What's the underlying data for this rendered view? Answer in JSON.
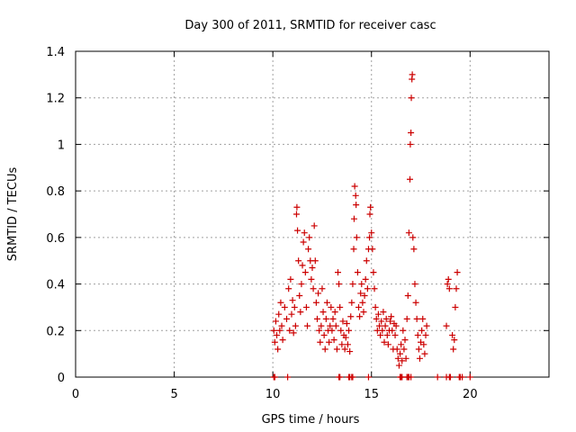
{
  "chart_data": {
    "type": "scatter",
    "title": "Day 300 of 2011, SRMTID for receiver casc",
    "xlabel": "GPS time / hours",
    "ylabel": "SRMTID / TECUs",
    "xlim": [
      0,
      24
    ],
    "ylim": [
      0,
      1.4
    ],
    "xticks": [
      0,
      5,
      10,
      15,
      20
    ],
    "yticks": [
      0,
      0.2,
      0.4,
      0.6,
      0.8,
      1,
      1.2,
      1.4
    ],
    "xtick_labels": [
      "0",
      "5",
      "10",
      "15",
      "20"
    ],
    "ytick_labels": [
      "0",
      "0.2",
      "0.4",
      "0.6",
      "0.8",
      "1",
      "1.2",
      "1.4"
    ],
    "grid": true,
    "marker": "+",
    "color": "#cc0000",
    "series": [
      {
        "name": "SRMTID",
        "points": [
          [
            10.05,
            0.2
          ],
          [
            10.1,
            0.15
          ],
          [
            10.15,
            0.24
          ],
          [
            10.2,
            0.18
          ],
          [
            10.25,
            0.12
          ],
          [
            10.3,
            0.27
          ],
          [
            10.35,
            0.2
          ],
          [
            10.4,
            0.32
          ],
          [
            10.45,
            0.22
          ],
          [
            10.5,
            0.16
          ],
          [
            10.6,
            0.3
          ],
          [
            10.7,
            0.25
          ],
          [
            10.8,
            0.38
          ],
          [
            10.85,
            0.2
          ],
          [
            10.9,
            0.42
          ],
          [
            10.95,
            0.27
          ],
          [
            11.0,
            0.33
          ],
          [
            11.05,
            0.19
          ],
          [
            11.1,
            0.3
          ],
          [
            11.15,
            0.22
          ],
          [
            11.2,
            0.7
          ],
          [
            11.22,
            0.73
          ],
          [
            11.25,
            0.63
          ],
          [
            11.3,
            0.5
          ],
          [
            11.35,
            0.35
          ],
          [
            11.4,
            0.28
          ],
          [
            11.45,
            0.4
          ],
          [
            11.5,
            0.48
          ],
          [
            11.55,
            0.58
          ],
          [
            11.6,
            0.62
          ],
          [
            11.65,
            0.45
          ],
          [
            11.7,
            0.3
          ],
          [
            11.75,
            0.22
          ],
          [
            11.8,
            0.55
          ],
          [
            11.85,
            0.6
          ],
          [
            11.9,
            0.5
          ],
          [
            11.95,
            0.42
          ],
          [
            12.0,
            0.47
          ],
          [
            12.05,
            0.38
          ],
          [
            12.1,
            0.65
          ],
          [
            12.15,
            0.5
          ],
          [
            12.2,
            0.32
          ],
          [
            12.25,
            0.25
          ],
          [
            12.3,
            0.36
          ],
          [
            12.35,
            0.2
          ],
          [
            12.4,
            0.15
          ],
          [
            12.45,
            0.22
          ],
          [
            12.5,
            0.38
          ],
          [
            12.55,
            0.28
          ],
          [
            12.6,
            0.18
          ],
          [
            12.65,
            0.12
          ],
          [
            12.7,
            0.25
          ],
          [
            12.75,
            0.32
          ],
          [
            12.8,
            0.2
          ],
          [
            12.85,
            0.15
          ],
          [
            12.9,
            0.22
          ],
          [
            12.95,
            0.3
          ],
          [
            13.0,
            0.2
          ],
          [
            13.05,
            0.25
          ],
          [
            13.1,
            0.16
          ],
          [
            13.15,
            0.28
          ],
          [
            13.2,
            0.22
          ],
          [
            13.25,
            0.12
          ],
          [
            13.3,
            0.45
          ],
          [
            13.35,
            0.4
          ],
          [
            13.4,
            0.3
          ],
          [
            13.45,
            0.2
          ],
          [
            13.5,
            0.14
          ],
          [
            13.55,
            0.24
          ],
          [
            13.6,
            0.18
          ],
          [
            13.65,
            0.12
          ],
          [
            13.7,
            0.17
          ],
          [
            13.75,
            0.23
          ],
          [
            13.8,
            0.14
          ],
          [
            13.85,
            0.2
          ],
          [
            13.9,
            0.11
          ],
          [
            13.95,
            0.26
          ],
          [
            14.0,
            0.32
          ],
          [
            14.05,
            0.4
          ],
          [
            14.1,
            0.55
          ],
          [
            14.12,
            0.68
          ],
          [
            14.15,
            0.82
          ],
          [
            14.2,
            0.78
          ],
          [
            14.22,
            0.74
          ],
          [
            14.25,
            0.6
          ],
          [
            14.3,
            0.45
          ],
          [
            14.35,
            0.3
          ],
          [
            14.4,
            0.26
          ],
          [
            14.45,
            0.36
          ],
          [
            14.5,
            0.4
          ],
          [
            14.55,
            0.32
          ],
          [
            14.6,
            0.28
          ],
          [
            14.65,
            0.35
          ],
          [
            14.7,
            0.42
          ],
          [
            14.75,
            0.5
          ],
          [
            14.8,
            0.38
          ],
          [
            14.85,
            0.55
          ],
          [
            14.9,
            0.6
          ],
          [
            14.92,
            0.7
          ],
          [
            14.95,
            0.73
          ],
          [
            15.0,
            0.62
          ],
          [
            15.05,
            0.55
          ],
          [
            15.1,
            0.45
          ],
          [
            15.15,
            0.38
          ],
          [
            15.2,
            0.3
          ],
          [
            15.25,
            0.25
          ],
          [
            15.3,
            0.2
          ],
          [
            15.35,
            0.27
          ],
          [
            15.4,
            0.22
          ],
          [
            15.45,
            0.18
          ],
          [
            15.5,
            0.24
          ],
          [
            15.55,
            0.2
          ],
          [
            15.6,
            0.28
          ],
          [
            15.65,
            0.15
          ],
          [
            15.7,
            0.22
          ],
          [
            15.75,
            0.25
          ],
          [
            15.8,
            0.18
          ],
          [
            15.85,
            0.14
          ],
          [
            15.9,
            0.2
          ],
          [
            15.95,
            0.24
          ],
          [
            16.0,
            0.26
          ],
          [
            16.05,
            0.2
          ],
          [
            16.1,
            0.12
          ],
          [
            16.15,
            0.23
          ],
          [
            16.2,
            0.18
          ],
          [
            16.25,
            0.22
          ],
          [
            16.3,
            0.12
          ],
          [
            16.35,
            0.08
          ],
          [
            16.4,
            0.05
          ],
          [
            16.45,
            0.1
          ],
          [
            16.5,
            0.14
          ],
          [
            16.55,
            0.07
          ],
          [
            16.6,
            0.2
          ],
          [
            16.65,
            0.12
          ],
          [
            16.7,
            0.16
          ],
          [
            16.75,
            0.08
          ],
          [
            16.8,
            0.25
          ],
          [
            16.85,
            0.35
          ],
          [
            16.9,
            0.62
          ],
          [
            16.95,
            0.85
          ],
          [
            16.97,
            1.0
          ],
          [
            17.0,
            1.05
          ],
          [
            17.02,
            1.2
          ],
          [
            17.05,
            1.28
          ],
          [
            17.07,
            1.3
          ],
          [
            17.1,
            0.6
          ],
          [
            17.15,
            0.55
          ],
          [
            17.2,
            0.4
          ],
          [
            17.25,
            0.32
          ],
          [
            17.3,
            0.25
          ],
          [
            17.35,
            0.18
          ],
          [
            17.4,
            0.12
          ],
          [
            17.45,
            0.08
          ],
          [
            17.5,
            0.15
          ],
          [
            17.55,
            0.2
          ],
          [
            17.6,
            0.25
          ],
          [
            17.65,
            0.14
          ],
          [
            17.7,
            0.1
          ],
          [
            17.75,
            0.18
          ],
          [
            17.8,
            0.22
          ],
          [
            18.8,
            0.22
          ],
          [
            18.85,
            0.4
          ],
          [
            18.9,
            0.42
          ],
          [
            18.95,
            0.38
          ],
          [
            19.1,
            0.18
          ],
          [
            19.15,
            0.12
          ],
          [
            19.2,
            0.16
          ],
          [
            19.25,
            0.3
          ],
          [
            19.3,
            0.38
          ],
          [
            19.35,
            0.45
          ],
          [
            10.05,
            0.0
          ],
          [
            10.1,
            0.0
          ],
          [
            10.75,
            0.0
          ],
          [
            13.35,
            0.0
          ],
          [
            13.4,
            0.0
          ],
          [
            13.85,
            0.0
          ],
          [
            13.9,
            0.0
          ],
          [
            14.0,
            0.0
          ],
          [
            14.05,
            0.0
          ],
          [
            14.85,
            0.0
          ],
          [
            16.45,
            0.0
          ],
          [
            16.5,
            0.0
          ],
          [
            16.55,
            0.0
          ],
          [
            16.8,
            0.0
          ],
          [
            16.85,
            0.0
          ],
          [
            16.9,
            0.0
          ],
          [
            17.0,
            0.0
          ],
          [
            18.35,
            0.0
          ],
          [
            18.8,
            0.0
          ],
          [
            18.95,
            0.0
          ],
          [
            19.0,
            0.0
          ],
          [
            19.45,
            0.0
          ],
          [
            19.5,
            0.0
          ],
          [
            19.6,
            0.0
          ],
          [
            20.0,
            0.0
          ]
        ]
      }
    ]
  }
}
